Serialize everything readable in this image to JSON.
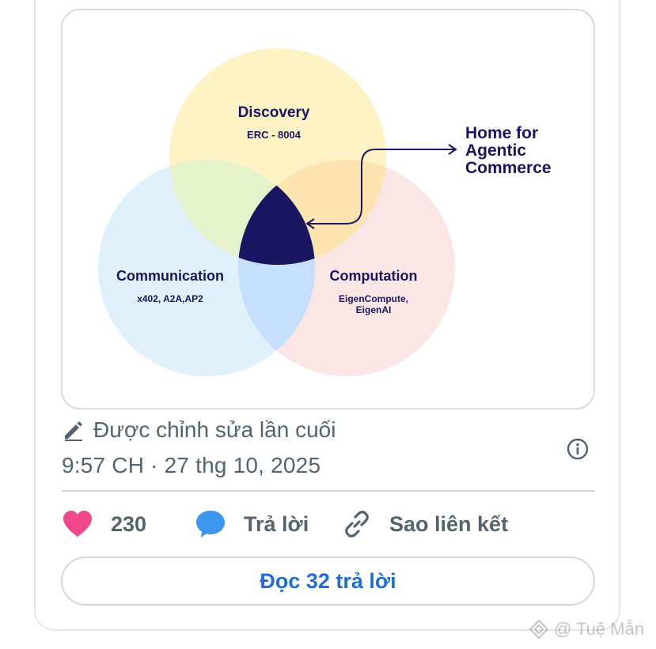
{
  "diagram": {
    "circles": {
      "discovery": {
        "title": "Discovery",
        "subtitle": "ERC - 8004",
        "color": "#fdf3c4"
      },
      "communication": {
        "title": "Communication",
        "subtitle": "x402, A2A,AP2",
        "color": "#e0f1fb"
      },
      "computation": {
        "title": "Computation",
        "subtitle_line1": "EigenCompute,",
        "subtitle_line2": "EigenAI",
        "color": "#fbe6e6"
      }
    },
    "center_color": "#1a1560",
    "callout": {
      "line1": "Home for",
      "line2": "Agentic",
      "line3": "Commerce"
    }
  },
  "edited": {
    "label": "Được chỉnh sửa lần cuối",
    "icon": "pencil-icon"
  },
  "timestamp": "9:57 CH · 27 thg 10, 2025",
  "actions": {
    "like_count": "230",
    "reply_label": "Trả lời",
    "copy_link_label": "Sao liên kết"
  },
  "read_replies_label": "Đọc 32 trả lời",
  "watermark": "@ Tuệ Mẫn",
  "colors": {
    "heart": "#f0468a",
    "reply_bubble": "#3d96ee",
    "link_blue": "#1d6fd6",
    "muted_text": "#536471"
  }
}
